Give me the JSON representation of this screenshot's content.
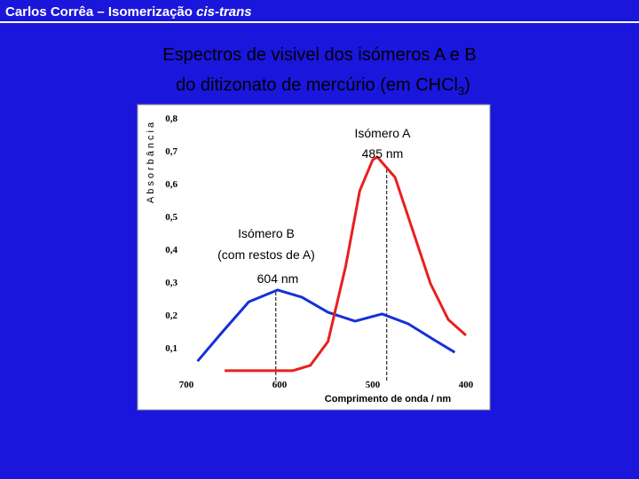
{
  "header": {
    "text": "Carlos Corrêa – Isomerização ",
    "italic": "cis-trans"
  },
  "title": {
    "line1": "Espectros de visivel dos isómeros A e B",
    "line2": "do ditizonato de mercúrio (em CHCl",
    "subscript": "3",
    "end": ")"
  },
  "chart_data": {
    "type": "line",
    "xlabel": "Comprimento de onda / nm",
    "ylabel": "Absorbância",
    "xlim": [
      700,
      400
    ],
    "xticks": [
      700,
      600,
      500,
      400
    ],
    "ylim": [
      0,
      0.83
    ],
    "yticks": [
      {
        "value": 0.1,
        "label": "0,1"
      },
      {
        "value": 0.2,
        "label": "0,2"
      },
      {
        "value": 0.3,
        "label": "0,3"
      },
      {
        "value": 0.4,
        "label": "0,4"
      },
      {
        "value": 0.5,
        "label": "0,5"
      },
      {
        "value": 0.6,
        "label": "0,6"
      },
      {
        "value": 0.7,
        "label": "0,7"
      },
      {
        "value": 0.8,
        "label": "0,8"
      }
    ],
    "grid": false,
    "series": [
      {
        "color": "#1530d8",
        "x": [
          688,
          662,
          633,
          602,
          576,
          548,
          519,
          490,
          462,
          433,
          412
        ],
        "values": [
          0.059,
          0.146,
          0.24,
          0.276,
          0.254,
          0.208,
          0.181,
          0.203,
          0.173,
          0.122,
          0.086
        ]
      },
      {
        "color": "#e8201e",
        "x": [
          659,
          586,
          567,
          548,
          529,
          514,
          500,
          495,
          476,
          457,
          438,
          419,
          400
        ],
        "values": [
          0.03,
          0.03,
          0.046,
          0.119,
          0.349,
          0.578,
          0.673,
          0.681,
          0.619,
          0.457,
          0.295,
          0.186,
          0.138
        ]
      }
    ],
    "vlines": [
      {
        "value": 604,
        "label": "604 nm"
      },
      {
        "value": 485,
        "label": "485 nm"
      }
    ],
    "annotations": [
      "Isómero A",
      "Isómero B",
      "(com restos de A)"
    ]
  }
}
